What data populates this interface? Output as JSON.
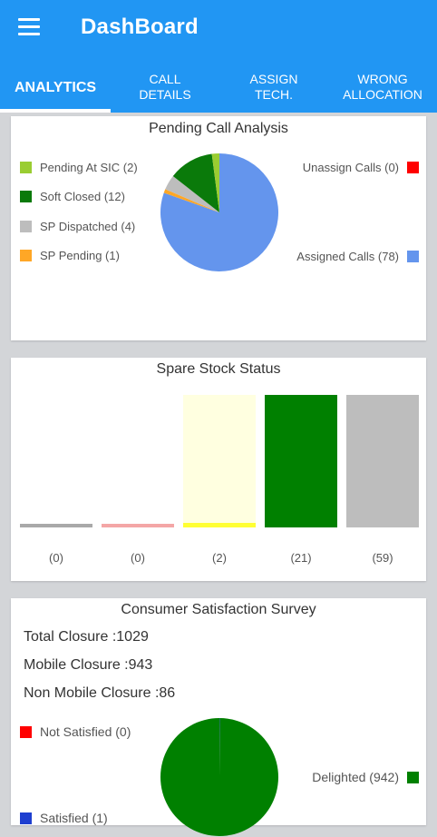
{
  "app": {
    "title": "DashBoard"
  },
  "tabs": [
    {
      "label": "ANALYTICS"
    },
    {
      "label": "CALL\nDETAILS"
    },
    {
      "label": "ASSIGN\nTECH."
    },
    {
      "label": "WRONG\nALLOCATION"
    }
  ],
  "pending": {
    "title": "Pending Call Analysis",
    "legend": [
      {
        "label": "Pending At SIC (2)",
        "color": "#9acd32"
      },
      {
        "label": "Soft Closed (12)",
        "color": "#0a7a0a"
      },
      {
        "label": "SP Dispatched (4)",
        "color": "#bdbdbd"
      },
      {
        "label": "SP Pending (1)",
        "color": "#ffa726"
      },
      {
        "label": "Unassign Calls (0)",
        "color": "#ff0000"
      },
      {
        "label": "Assigned Calls (78)",
        "color": "#6495ed"
      }
    ]
  },
  "spare": {
    "title": "Spare Stock Status",
    "bars": [
      {
        "label": "(0)",
        "value": 0,
        "color": "#a9a9a9",
        "track": "#ffffff"
      },
      {
        "label": "(0)",
        "value": 0,
        "color": "#f4a6a6",
        "track": "#ffffff"
      },
      {
        "label": "(2)",
        "value": 2,
        "color": "#ffff33",
        "track": "#ffffe0"
      },
      {
        "label": "(21)",
        "value": 21,
        "color": "#008000",
        "track": "#dff0df"
      },
      {
        "label": "(59)",
        "value": 59,
        "color": "#bdbdbd",
        "track": "#bdbdbd"
      }
    ]
  },
  "survey": {
    "title": "Consumer Satisfaction Survey",
    "total": "Total Closure :1029",
    "mobile": "Mobile Closure :943",
    "non_mobile": "Non Mobile Closure :86",
    "legend": [
      {
        "label": "Not Satisfied (0)",
        "color": "#ff0000"
      },
      {
        "label": "Delighted (942)",
        "color": "#008000"
      },
      {
        "label": "Satisfied (1)",
        "color": "#1e3fd0"
      }
    ]
  },
  "chart_data": [
    {
      "type": "pie",
      "title": "Pending Call Analysis",
      "categories": [
        "Pending At SIC",
        "Soft Closed",
        "SP Dispatched",
        "SP Pending",
        "Unassign Calls",
        "Assigned Calls"
      ],
      "values": [
        2,
        12,
        4,
        1,
        0,
        78
      ]
    },
    {
      "type": "bar",
      "title": "Spare Stock Status",
      "categories": [
        "(0)",
        "(0)",
        "(2)",
        "(21)",
        "(59)"
      ],
      "values": [
        0,
        0,
        2,
        21,
        59
      ]
    },
    {
      "type": "pie",
      "title": "Consumer Satisfaction Survey",
      "categories": [
        "Not Satisfied",
        "Delighted",
        "Satisfied"
      ],
      "values": [
        0,
        942,
        1
      ]
    }
  ]
}
